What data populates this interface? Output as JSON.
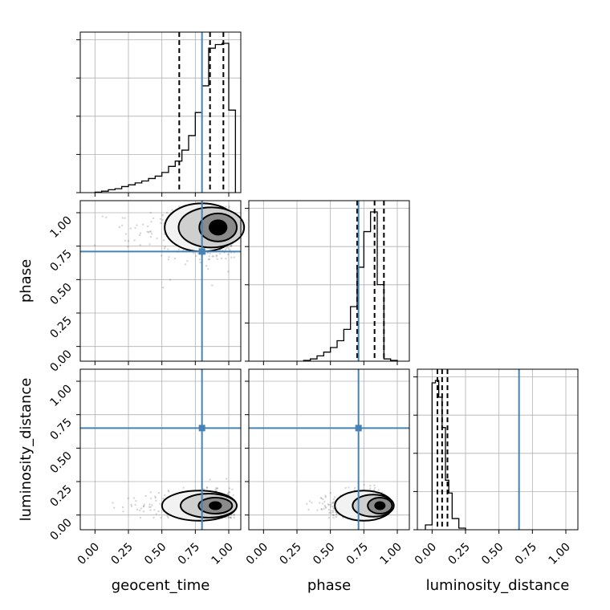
{
  "chart_data": {
    "type": "corner",
    "parameters": [
      "geocent_time",
      "phase",
      "luminosity_distance"
    ],
    "tick_labels": [
      "0.00",
      "0.25",
      "0.50",
      "0.75",
      "1.00"
    ],
    "tick_values": [
      0,
      0.25,
      0.5,
      0.75,
      1.0
    ],
    "grid": true,
    "colors": {
      "truth": "#4682b4",
      "hist": "#000000",
      "grid": "#b0b0b0"
    },
    "truths": {
      "geocent_time": 0.8,
      "phase": 0.71,
      "luminosity_distance": 0.65
    },
    "quantiles": {
      "geocent_time": [
        0.63,
        0.86,
        0.96
      ],
      "phase": [
        0.7,
        0.83,
        0.9
      ],
      "luminosity_distance": [
        0.04,
        0.075,
        0.115
      ]
    },
    "marginals": {
      "geocent_time": {
        "range": [
          -0.11,
          1.09
        ],
        "bin_edges": [
          0.0,
          0.05,
          0.1,
          0.15,
          0.2,
          0.25,
          0.3,
          0.35,
          0.4,
          0.45,
          0.5,
          0.55,
          0.6,
          0.65,
          0.7,
          0.75,
          0.8,
          0.85,
          0.9,
          0.95,
          1.0,
          1.05
        ],
        "counts": [
          2,
          6,
          12,
          16,
          25,
          32,
          40,
          48,
          58,
          68,
          83,
          108,
          130,
          175,
          235,
          330,
          440,
          595,
          610,
          615,
          340
        ]
      },
      "phase": {
        "range": [
          -0.11,
          1.09
        ],
        "bin_edges": [
          0.3,
          0.35,
          0.4,
          0.45,
          0.5,
          0.55,
          0.6,
          0.65,
          0.7,
          0.75,
          0.8,
          0.85,
          0.9,
          0.95,
          1.0
        ],
        "counts": [
          5,
          15,
          35,
          60,
          90,
          135,
          210,
          360,
          620,
          855,
          985,
          505,
          15,
          5
        ]
      },
      "luminosity_distance": {
        "range": [
          -0.11,
          1.09
        ],
        "bin_edges": [
          -0.05,
          0.0,
          0.025,
          0.05,
          0.075,
          0.1,
          0.125,
          0.15,
          0.2,
          0.25
        ],
        "counts": [
          30,
          920,
          935,
          830,
          640,
          310,
          230,
          70,
          10
        ]
      }
    }
  }
}
